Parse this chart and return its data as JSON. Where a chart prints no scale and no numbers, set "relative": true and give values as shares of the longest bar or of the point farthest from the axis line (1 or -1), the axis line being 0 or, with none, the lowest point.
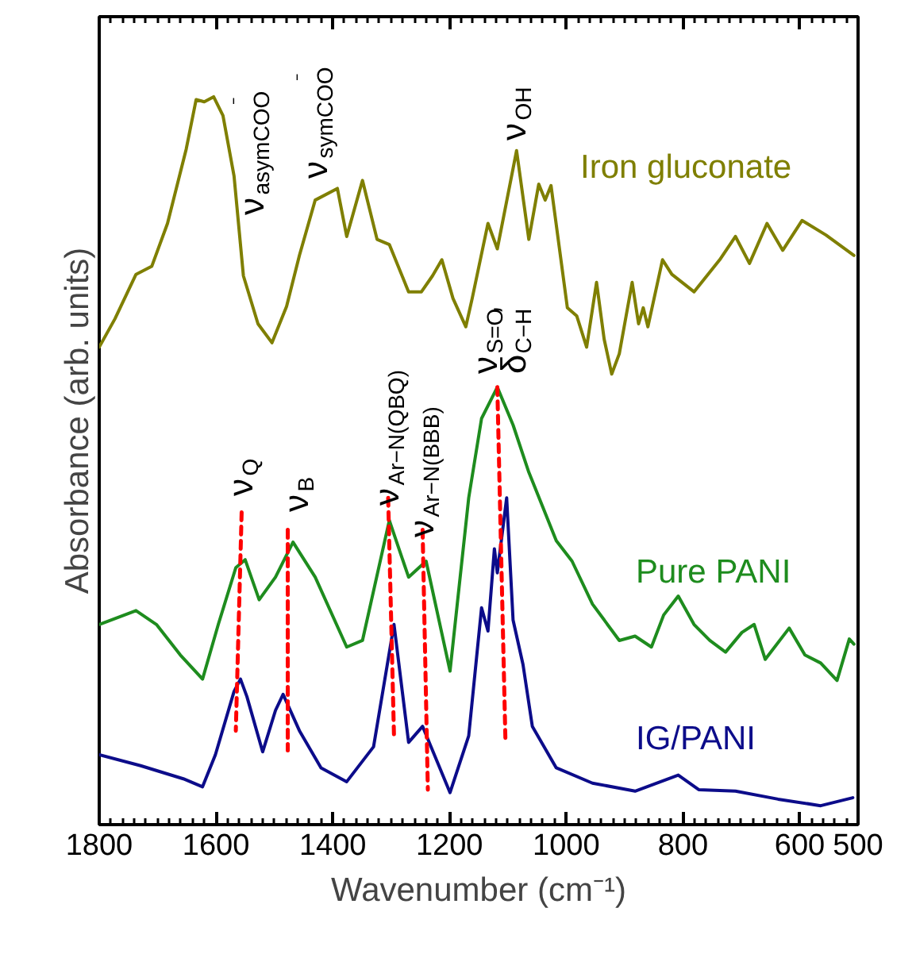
{
  "chart_data": {
    "type": "line",
    "relative": true,
    "xlabel": "Wavenumber (cm⁻¹)",
    "ylabel": "Absorbance (arb. units)",
    "xlim": [
      1800,
      500
    ],
    "xticks": [
      1800,
      1600,
      1400,
      1200,
      1000,
      800,
      600,
      500
    ],
    "grid": false,
    "marker": "none",
    "line_style": "solid",
    "series": [
      {
        "name": "Iron gluconate",
        "color": "#7f7f00",
        "x": [
          1800,
          1773,
          1737,
          1710,
          1683,
          1651,
          1634,
          1620,
          1604,
          1588,
          1569,
          1553,
          1528,
          1504,
          1479,
          1457,
          1430,
          1392,
          1376,
          1349,
          1324,
          1303,
          1270,
          1248,
          1229,
          1213,
          1194,
          1172,
          1161,
          1134,
          1118,
          1085,
          1064,
          1047,
          1036,
          1026,
          998,
          982,
          965,
          948,
          935,
          922,
          909,
          887,
          876,
          868,
          860,
          835,
          819,
          781,
          737,
          710,
          686,
          656,
          629,
          596,
          555,
          507
        ],
        "values": [
          0.656,
          0.695,
          0.756,
          0.767,
          0.826,
          0.928,
          0.996,
          0.993,
          1.0,
          0.974,
          0.891,
          0.754,
          0.688,
          0.662,
          0.712,
          0.782,
          0.858,
          0.874,
          0.808,
          0.885,
          0.804,
          0.797,
          0.732,
          0.732,
          0.754,
          0.776,
          0.723,
          0.684,
          0.723,
          0.826,
          0.791,
          0.926,
          0.804,
          0.88,
          0.858,
          0.878,
          0.71,
          0.699,
          0.656,
          0.745,
          0.667,
          0.619,
          0.647,
          0.745,
          0.688,
          0.71,
          0.684,
          0.776,
          0.756,
          0.732,
          0.776,
          0.808,
          0.771,
          0.826,
          0.789,
          0.83,
          0.81,
          0.782
        ]
      },
      {
        "name": "Pure PANI",
        "color": "#1e8c1e",
        "x": [
          1800,
          1737,
          1702,
          1661,
          1623,
          1596,
          1566,
          1550,
          1526,
          1498,
          1468,
          1430,
          1376,
          1349,
          1303,
          1270,
          1240,
          1199,
          1167,
          1145,
          1118,
          1091,
          1064,
          1017,
          990,
          955,
          909,
          882,
          854,
          833,
          808,
          781,
          754,
          727,
          699,
          678,
          659,
          618,
          591,
          564,
          536,
          515,
          507
        ],
        "values": [
          0.275,
          0.294,
          0.275,
          0.233,
          0.2,
          0.275,
          0.353,
          0.364,
          0.309,
          0.34,
          0.388,
          0.34,
          0.244,
          0.253,
          0.418,
          0.34,
          0.362,
          0.211,
          0.449,
          0.558,
          0.601,
          0.549,
          0.484,
          0.39,
          0.362,
          0.303,
          0.253,
          0.259,
          0.244,
          0.288,
          0.314,
          0.275,
          0.253,
          0.237,
          0.264,
          0.275,
          0.227,
          0.27,
          0.233,
          0.222,
          0.198,
          0.255,
          0.248
        ]
      },
      {
        "name": "IG/PANI",
        "color": "#0c0c8a",
        "x": [
          1800,
          1729,
          1656,
          1623,
          1601,
          1569,
          1558,
          1547,
          1520,
          1498,
          1485,
          1457,
          1420,
          1376,
          1330,
          1295,
          1270,
          1246,
          1199,
          1167,
          1145,
          1134,
          1123,
          1118,
          1102,
          1091,
          1074,
          1058,
          1017,
          955,
          882,
          808,
          773,
          710,
          637,
          564,
          509
        ],
        "values": [
          0.096,
          0.081,
          0.063,
          0.052,
          0.096,
          0.183,
          0.2,
          0.176,
          0.1,
          0.157,
          0.179,
          0.129,
          0.078,
          0.059,
          0.107,
          0.275,
          0.113,
          0.135,
          0.044,
          0.122,
          0.298,
          0.266,
          0.379,
          0.346,
          0.449,
          0.281,
          0.22,
          0.135,
          0.078,
          0.057,
          0.046,
          0.068,
          0.048,
          0.046,
          0.035,
          0.026,
          0.037
        ]
      },
      {
        "color": "#ff0000",
        "line_style": "dashed",
        "x": [
          1556,
          1566
        ],
        "values": [
          0.429,
          0.129
        ]
      },
      {
        "color": "#ff0000",
        "line_style": "dashed",
        "x": [
          1477,
          1477
        ],
        "values": [
          0.405,
          0.102
        ]
      },
      {
        "color": "#ff0000",
        "line_style": "dashed",
        "x": [
          1305,
          1295
        ],
        "values": [
          0.449,
          0.122
        ]
      },
      {
        "color": "#ff0000",
        "line_style": "dashed",
        "x": [
          1246,
          1237
        ],
        "values": [
          0.405,
          0.048
        ]
      },
      {
        "color": "#ff0000",
        "line_style": "dashed",
        "x": [
          1118,
          1104
        ],
        "values": [
          0.601,
          0.113
        ]
      }
    ],
    "annotations": [
      "ν$_{asymCOO}$$^{⁻}$",
      "ν$_{symCOO}$$^{⁻}$",
      "ν$_{OH}$",
      "ν$_{Q}$",
      "ν$_{B}$",
      "ν$_{Ar−N(QBQ)}$",
      "ν$_{Ar−N(BBB)}$",
      "ν$_{S=O}$,",
      "δ$_{C−H}$"
    ]
  }
}
